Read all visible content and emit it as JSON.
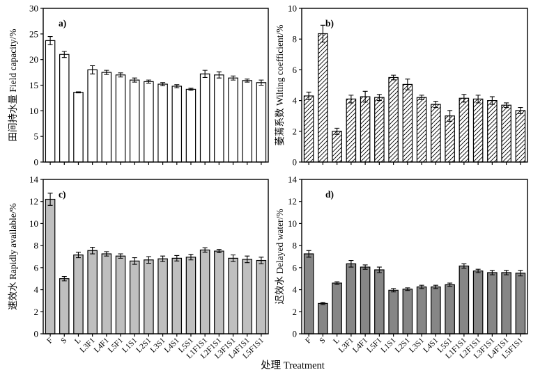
{
  "chart_data": {
    "type": "bar",
    "xlabel": "处理 Treatment",
    "x_tick_rotation": 45,
    "grid": false,
    "legend": "none",
    "error_bars": true,
    "categories": [
      "F",
      "S",
      "L",
      "L3F1",
      "L4F1",
      "L5F1",
      "L1S1",
      "L2S1",
      "L3S1",
      "L4S1",
      "L5S1",
      "L1F1S1",
      "L2F1S1",
      "L3F1S1",
      "L4F1S1",
      "L5F1S1"
    ],
    "line_color": "#000000",
    "panels": [
      {
        "id": "a",
        "letter": "a)",
        "ylabel": "田间持水量 Field capacity/%",
        "ylim": [
          0,
          30
        ],
        "yticks": [
          0,
          5,
          10,
          15,
          20,
          25,
          30
        ],
        "bar_style": "open",
        "fill": "#ffffff",
        "hatch": false,
        "values": [
          23.7,
          21.0,
          13.6,
          18.0,
          17.5,
          17.0,
          16.0,
          15.7,
          15.2,
          14.8,
          14.2,
          17.2,
          17.0,
          16.4,
          15.9,
          15.5
        ],
        "errors": [
          0.8,
          0.6,
          0.1,
          0.8,
          0.4,
          0.4,
          0.4,
          0.3,
          0.3,
          0.3,
          0.2,
          0.7,
          0.6,
          0.4,
          0.3,
          0.5
        ]
      },
      {
        "id": "b",
        "letter": "b)",
        "ylabel": "萎蔫系数 Wilting coefficient/%",
        "ylim": [
          0,
          10
        ],
        "yticks": [
          0,
          2,
          4,
          6,
          8,
          10
        ],
        "bar_style": "hatched",
        "fill": "#ffffff",
        "hatch": true,
        "values": [
          4.3,
          8.35,
          2.0,
          4.1,
          4.25,
          4.2,
          5.5,
          5.05,
          4.2,
          3.75,
          3.0,
          4.15,
          4.1,
          4.0,
          3.7,
          3.35
        ],
        "errors": [
          0.25,
          0.55,
          0.2,
          0.25,
          0.35,
          0.2,
          0.15,
          0.35,
          0.15,
          0.2,
          0.35,
          0.25,
          0.25,
          0.25,
          0.15,
          0.2
        ]
      },
      {
        "id": "c",
        "letter": "c)",
        "ylabel": "速效水 Rapidly available/%",
        "ylim": [
          0,
          14
        ],
        "yticks": [
          0,
          2,
          4,
          6,
          8,
          10,
          12,
          14
        ],
        "bar_style": "light-gray",
        "fill": "#bfbfbf",
        "hatch": false,
        "values": [
          12.2,
          5.0,
          7.15,
          7.55,
          7.25,
          7.05,
          6.6,
          6.7,
          6.8,
          6.85,
          6.95,
          7.6,
          7.5,
          6.85,
          6.75,
          6.65
        ],
        "errors": [
          0.55,
          0.2,
          0.25,
          0.3,
          0.2,
          0.2,
          0.3,
          0.3,
          0.25,
          0.25,
          0.25,
          0.2,
          0.15,
          0.3,
          0.3,
          0.3
        ]
      },
      {
        "id": "d",
        "letter": "d)",
        "ylabel": "迟效水 Delayed water/%",
        "ylim": [
          0,
          14
        ],
        "yticks": [
          0,
          2,
          4,
          6,
          8,
          10,
          12,
          14
        ],
        "bar_style": "dark-gray",
        "fill": "#868686",
        "hatch": false,
        "values": [
          7.25,
          2.75,
          4.6,
          6.35,
          6.05,
          5.8,
          3.95,
          4.05,
          4.25,
          4.25,
          4.45,
          6.15,
          5.7,
          5.55,
          5.55,
          5.5
        ],
        "errors": [
          0.3,
          0.1,
          0.12,
          0.3,
          0.2,
          0.25,
          0.15,
          0.12,
          0.15,
          0.15,
          0.15,
          0.2,
          0.15,
          0.2,
          0.2,
          0.25
        ]
      }
    ]
  }
}
